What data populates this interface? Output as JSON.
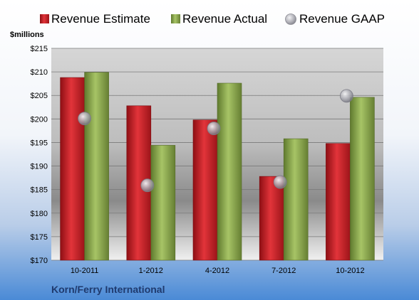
{
  "chart_data": {
    "type": "bar",
    "categories": [
      "10-2011",
      "1-2012",
      "4-2012",
      "7-2012",
      "10-2012"
    ],
    "series": [
      {
        "name": "Revenue Estimate",
        "kind": "bar",
        "color": "#cc1f26",
        "values": [
          208.8,
          202.8,
          199.8,
          187.8,
          194.8
        ]
      },
      {
        "name": "Revenue Actual",
        "kind": "bar",
        "color": "#8fb04e",
        "values": [
          209.9,
          194.4,
          207.6,
          195.8,
          204.6
        ]
      },
      {
        "name": "Revenue GAAP",
        "kind": "marker",
        "color": "#a0a0a8",
        "values": [
          200.1,
          185.9,
          198.0,
          186.6,
          204.9
        ]
      }
    ],
    "ylabel": "$millions",
    "ylim": [
      170,
      215
    ],
    "yticks": [
      170,
      175,
      180,
      185,
      190,
      195,
      200,
      205,
      210,
      215
    ],
    "ytick_labels": [
      "$170",
      "$175",
      "$180",
      "$185",
      "$190",
      "$195",
      "$200",
      "$205",
      "$210",
      "$215"
    ],
    "grid": true,
    "legend_position": "top",
    "annotation": "Korn/Ferry International"
  }
}
